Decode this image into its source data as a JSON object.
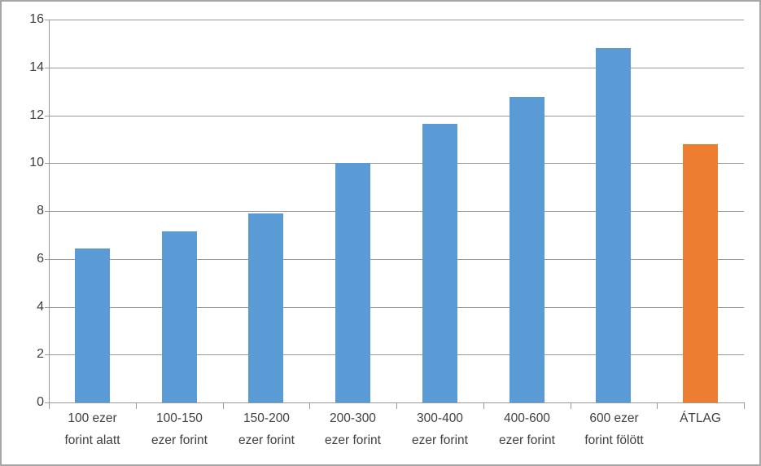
{
  "chart_data": {
    "type": "bar",
    "title": "",
    "xlabel": "",
    "ylabel": "",
    "categories": [
      "100 ezer\nforint alatt",
      "100-150\nezer forint",
      "150-200\nezer forint",
      "200-300\nezer forint",
      "300-400\nezer forint",
      "400-600\nezer forint",
      "600 ezer\nforint fölött",
      "ÁTLAG"
    ],
    "values": [
      6.45,
      7.15,
      7.9,
      10.0,
      11.65,
      12.75,
      14.8,
      10.8
    ],
    "highlight_index": 7,
    "ylim": [
      0,
      16
    ],
    "yticks": [
      0,
      2,
      4,
      6,
      8,
      10,
      12,
      14,
      16
    ],
    "grid": true,
    "legend": "none",
    "colors": {
      "bar": "#5b9bd5",
      "bar_highlight": "#ed7d31",
      "gridline": "#999999",
      "axis_text": "#404040",
      "border": "#a6a6a6",
      "background": "#ffffff"
    }
  }
}
